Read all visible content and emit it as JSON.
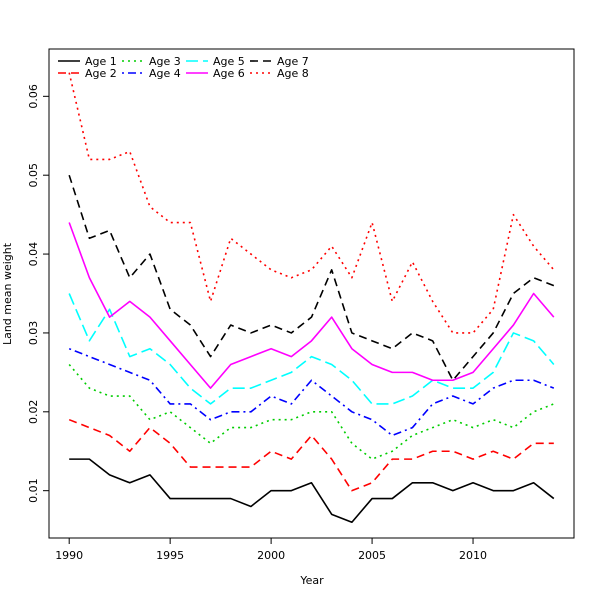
{
  "chart_data": {
    "type": "line",
    "title": "",
    "xlabel": "Year",
    "ylabel": "Land mean weight",
    "xlim": [
      1989,
      2015
    ],
    "ylim": [
      0.004,
      0.066
    ],
    "x_ticks": [
      1990,
      1995,
      2000,
      2005,
      2010
    ],
    "y_ticks": [
      0.01,
      0.02,
      0.03,
      0.04,
      0.05,
      0.06
    ],
    "y_tick_labels": [
      "0.01",
      "0.02",
      "0.03",
      "0.04",
      "0.05",
      "0.06"
    ],
    "grid": false,
    "legend_position": "top-left",
    "x": [
      1990,
      1991,
      1992,
      1993,
      1994,
      1995,
      1996,
      1997,
      1998,
      1999,
      2000,
      2001,
      2002,
      2003,
      2004,
      2005,
      2006,
      2007,
      2008,
      2009,
      2010,
      2011,
      2012,
      2013,
      2014
    ],
    "series": [
      {
        "name": "Age 1",
        "color": "#000000",
        "dash": "solid",
        "values": [
          0.014,
          0.014,
          0.012,
          0.011,
          0.012,
          0.009,
          0.009,
          0.009,
          0.009,
          0.008,
          0.01,
          0.01,
          0.011,
          0.007,
          0.006,
          0.009,
          0.009,
          0.011,
          0.011,
          0.01,
          0.011,
          0.01,
          0.01,
          0.011,
          0.009
        ]
      },
      {
        "name": "Age 2",
        "color": "#ff0000",
        "dash": "dashed",
        "values": [
          0.019,
          0.018,
          0.017,
          0.015,
          0.018,
          0.016,
          0.013,
          0.013,
          0.013,
          0.013,
          0.015,
          0.014,
          0.017,
          0.014,
          0.01,
          0.011,
          0.014,
          0.014,
          0.015,
          0.015,
          0.014,
          0.015,
          0.014,
          0.016,
          0.016
        ]
      },
      {
        "name": "Age 3",
        "color": "#00cd00",
        "dash": "dotted",
        "values": [
          0.026,
          0.023,
          0.022,
          0.022,
          0.019,
          0.02,
          0.018,
          0.016,
          0.018,
          0.018,
          0.019,
          0.019,
          0.02,
          0.02,
          0.016,
          0.014,
          0.015,
          0.017,
          0.018,
          0.019,
          0.018,
          0.019,
          0.018,
          0.02,
          0.021
        ]
      },
      {
        "name": "Age 4",
        "color": "#0000ff",
        "dash": "dotdash",
        "values": [
          0.028,
          0.027,
          0.026,
          0.025,
          0.024,
          0.021,
          0.021,
          0.019,
          0.02,
          0.02,
          0.022,
          0.021,
          0.024,
          0.022,
          0.02,
          0.019,
          0.017,
          0.018,
          0.021,
          0.022,
          0.021,
          0.023,
          0.024,
          0.024,
          0.023
        ]
      },
      {
        "name": "Age 5",
        "color": "#00ffff",
        "dash": "longdash",
        "values": [
          0.035,
          0.029,
          0.033,
          0.027,
          0.028,
          0.026,
          0.023,
          0.021,
          0.023,
          0.023,
          0.024,
          0.025,
          0.027,
          0.026,
          0.024,
          0.021,
          0.021,
          0.022,
          0.024,
          0.023,
          0.023,
          0.025,
          0.03,
          0.029,
          0.026
        ]
      },
      {
        "name": "Age 6",
        "color": "#ff00ff",
        "dash": "solid",
        "values": [
          0.044,
          0.037,
          0.032,
          0.034,
          0.032,
          0.029,
          0.026,
          0.023,
          0.026,
          0.027,
          0.028,
          0.027,
          0.029,
          0.032,
          0.028,
          0.026,
          0.025,
          0.025,
          0.024,
          0.024,
          0.025,
          0.028,
          0.031,
          0.035,
          0.032
        ]
      },
      {
        "name": "Age 7",
        "color": "#000000",
        "dash": "dashed",
        "values": [
          0.05,
          0.042,
          0.043,
          0.037,
          0.04,
          0.033,
          0.031,
          0.027,
          0.031,
          0.03,
          0.031,
          0.03,
          0.032,
          0.038,
          0.03,
          0.029,
          0.028,
          0.03,
          0.029,
          0.024,
          0.027,
          0.03,
          0.035,
          0.037,
          0.036
        ]
      },
      {
        "name": "Age 8",
        "color": "#ff0000",
        "dash": "dotted",
        "values": [
          0.063,
          0.052,
          0.052,
          0.053,
          0.046,
          0.044,
          0.044,
          0.034,
          0.042,
          0.04,
          0.038,
          0.037,
          0.038,
          0.041,
          0.037,
          0.044,
          0.034,
          0.039,
          0.034,
          0.03,
          0.03,
          0.033,
          0.045,
          0.041,
          0.038
        ]
      }
    ]
  }
}
